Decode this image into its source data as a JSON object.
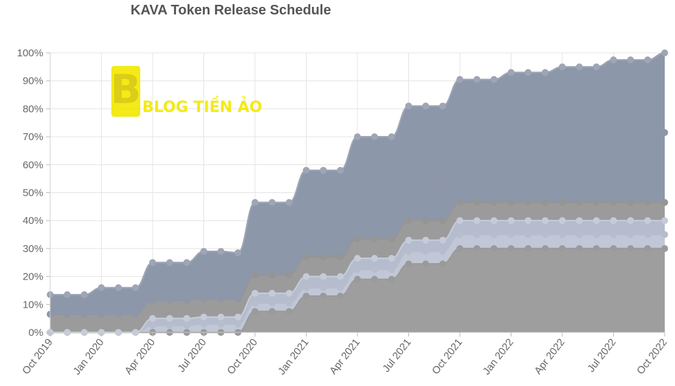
{
  "chart_data": {
    "type": "area",
    "stacked": true,
    "title": "KAVA Token Release Schedule",
    "xlabel": "",
    "ylabel": "",
    "ylim": [
      0,
      100
    ],
    "y_ticks": [
      "0%",
      "10%",
      "20%",
      "30%",
      "40%",
      "50%",
      "60%",
      "70%",
      "80%",
      "90%",
      "100%"
    ],
    "x_ticks": [
      "Oct 2019",
      "Jan 2020",
      "Apr 2020",
      "Jul 2020",
      "Oct 2020",
      "Jan 2021",
      "Apr 2021",
      "Jul 2021",
      "Oct 2021",
      "Jan 2022",
      "Apr 2022",
      "Jul 2022",
      "Oct 2022"
    ],
    "x": [
      "2019-10",
      "2019-11",
      "2019-12",
      "2020-01",
      "2020-02",
      "2020-03",
      "2020-04",
      "2020-05",
      "2020-06",
      "2020-07",
      "2020-08",
      "2020-09",
      "2020-10",
      "2020-11",
      "2020-12",
      "2021-01",
      "2021-02",
      "2021-03",
      "2021-04",
      "2021-05",
      "2021-06",
      "2021-07",
      "2021-08",
      "2021-09",
      "2021-10",
      "2021-11",
      "2021-12",
      "2022-01",
      "2022-02",
      "2022-03",
      "2022-04",
      "2022-05",
      "2022-06",
      "2022-07",
      "2022-08",
      "2022-09",
      "2022-10"
    ],
    "grid": true,
    "legend": "none",
    "cumulative_series": [
      {
        "color": "#9e9e9e",
        "point_color": "#9a9a9a",
        "values": [
          0,
          0,
          0,
          0,
          0,
          0,
          0,
          0,
          0,
          0,
          0,
          0,
          7.5,
          7.5,
          7.5,
          13,
          13,
          13,
          19,
          19,
          19,
          24.5,
          24.5,
          24.5,
          30,
          30,
          30,
          30,
          30,
          30,
          30,
          30,
          30,
          30,
          30,
          30,
          30
        ]
      },
      {
        "color": "#c1c7d6",
        "point_color": "#b7bdcc",
        "values": [
          0,
          0,
          0,
          0,
          0,
          0,
          2.5,
          2.5,
          2.5,
          3,
          3,
          3,
          10.5,
          10.5,
          10.5,
          16,
          16,
          16,
          22.5,
          22.5,
          22.5,
          29,
          29,
          29,
          35,
          35,
          35,
          35,
          35,
          35,
          35,
          35,
          35,
          35,
          35,
          35,
          35
        ]
      },
      {
        "color": "#b4bccd",
        "point_color": "#c5cbd8",
        "values": [
          0,
          0,
          0,
          0,
          0,
          0,
          5,
          5,
          5,
          5.5,
          5.5,
          5.5,
          14,
          14,
          14,
          20,
          20,
          20,
          26.5,
          26.5,
          26.5,
          33,
          33,
          33,
          40,
          40,
          40,
          40,
          40,
          40,
          40,
          40,
          40,
          40,
          40,
          40,
          40
        ]
      },
      {
        "color": "#9b9b9b",
        "point_color": "#959595",
        "values": [
          6.5,
          6.5,
          6.5,
          6.5,
          6.5,
          6.5,
          11.5,
          11.5,
          11.5,
          12,
          12,
          12,
          20.5,
          20.5,
          20.5,
          27,
          27,
          27,
          33.5,
          33.5,
          33.5,
          40,
          40,
          40,
          46.5,
          46.5,
          46.5,
          46.5,
          46.5,
          46.5,
          46.5,
          46.5,
          46.5,
          46.5,
          46.5,
          46.5,
          46.5
        ]
      },
      {
        "color": "#8d97aa",
        "point_color": "#8e96a8",
        "values": [
          6.5,
          6.5,
          6.5,
          6.5,
          6.5,
          6.5,
          11.5,
          11.5,
          11.5,
          12,
          12,
          12,
          27,
          26.5,
          26.5,
          36,
          35.5,
          35.5,
          44.5,
          44,
          44,
          53.5,
          53,
          53,
          62,
          61.5,
          61.5,
          64.5,
          64.5,
          64.5,
          67,
          67,
          67,
          69.5,
          69,
          69,
          71.5
        ]
      },
      {
        "color": "#8d97aa",
        "point_color": "#9ea5b5",
        "values": [
          13.5,
          13.5,
          13.5,
          16,
          16,
          16,
          25,
          25,
          25,
          29,
          29,
          28.5,
          46.5,
          46.5,
          46.5,
          58,
          58,
          58,
          70,
          70,
          70,
          81,
          81,
          81,
          90.5,
          90.5,
          90.5,
          93,
          93,
          93,
          95,
          95,
          95,
          97.5,
          97.5,
          97.5,
          100
        ]
      }
    ]
  },
  "watermark": {
    "text": "BLOG TIỀN ẢO",
    "color": "#f2e800"
  }
}
